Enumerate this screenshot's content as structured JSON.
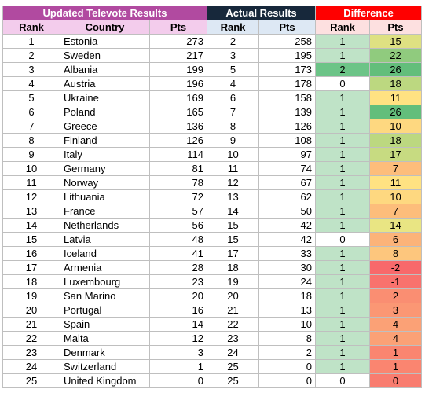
{
  "groups": {
    "televote": "Updated Televote Results",
    "actual": "Actual Results",
    "difference": "Difference"
  },
  "headers": {
    "rank": "Rank",
    "country": "Country",
    "pts": "Pts",
    "actual_rank": "Rank",
    "actual_pts": "Pts",
    "diff_rank": "Rank",
    "diff_pts": "Pts"
  },
  "rows": [
    {
      "rank": 1,
      "country": "Estonia",
      "pts": 273,
      "a_rank": 2,
      "a_pts": 258,
      "d_rank": 1,
      "d_pts": 15
    },
    {
      "rank": 2,
      "country": "Sweden",
      "pts": 217,
      "a_rank": 3,
      "a_pts": 195,
      "d_rank": 1,
      "d_pts": 22
    },
    {
      "rank": 3,
      "country": "Albania",
      "pts": 199,
      "a_rank": 5,
      "a_pts": 173,
      "d_rank": 2,
      "d_pts": 26
    },
    {
      "rank": 4,
      "country": "Austria",
      "pts": 196,
      "a_rank": 4,
      "a_pts": 178,
      "d_rank": 0,
      "d_pts": 18
    },
    {
      "rank": 5,
      "country": "Ukraine",
      "pts": 169,
      "a_rank": 6,
      "a_pts": 158,
      "d_rank": 1,
      "d_pts": 11
    },
    {
      "rank": 6,
      "country": "Poland",
      "pts": 165,
      "a_rank": 7,
      "a_pts": 139,
      "d_rank": 1,
      "d_pts": 26
    },
    {
      "rank": 7,
      "country": "Greece",
      "pts": 136,
      "a_rank": 8,
      "a_pts": 126,
      "d_rank": 1,
      "d_pts": 10
    },
    {
      "rank": 8,
      "country": "Finland",
      "pts": 126,
      "a_rank": 9,
      "a_pts": 108,
      "d_rank": 1,
      "d_pts": 18
    },
    {
      "rank": 9,
      "country": "Italy",
      "pts": 114,
      "a_rank": 10,
      "a_pts": 97,
      "d_rank": 1,
      "d_pts": 17
    },
    {
      "rank": 10,
      "country": "Germany",
      "pts": 81,
      "a_rank": 11,
      "a_pts": 74,
      "d_rank": 1,
      "d_pts": 7
    },
    {
      "rank": 11,
      "country": "Norway",
      "pts": 78,
      "a_rank": 12,
      "a_pts": 67,
      "d_rank": 1,
      "d_pts": 11
    },
    {
      "rank": 12,
      "country": "Lithuania",
      "pts": 72,
      "a_rank": 13,
      "a_pts": 62,
      "d_rank": 1,
      "d_pts": 10
    },
    {
      "rank": 13,
      "country": "France",
      "pts": 57,
      "a_rank": 14,
      "a_pts": 50,
      "d_rank": 1,
      "d_pts": 7
    },
    {
      "rank": 14,
      "country": "Netherlands",
      "pts": 56,
      "a_rank": 15,
      "a_pts": 42,
      "d_rank": 1,
      "d_pts": 14
    },
    {
      "rank": 15,
      "country": "Latvia",
      "pts": 48,
      "a_rank": 15,
      "a_pts": 42,
      "d_rank": 0,
      "d_pts": 6
    },
    {
      "rank": 16,
      "country": "Iceland",
      "pts": 41,
      "a_rank": 17,
      "a_pts": 33,
      "d_rank": 1,
      "d_pts": 8
    },
    {
      "rank": 17,
      "country": "Armenia",
      "pts": 28,
      "a_rank": 18,
      "a_pts": 30,
      "d_rank": 1,
      "d_pts": -2
    },
    {
      "rank": 18,
      "country": "Luxembourg",
      "pts": 23,
      "a_rank": 19,
      "a_pts": 24,
      "d_rank": 1,
      "d_pts": -1
    },
    {
      "rank": 19,
      "country": "San Marino",
      "pts": 20,
      "a_rank": 20,
      "a_pts": 18,
      "d_rank": 1,
      "d_pts": 2
    },
    {
      "rank": 20,
      "country": "Portugal",
      "pts": 16,
      "a_rank": 21,
      "a_pts": 13,
      "d_rank": 1,
      "d_pts": 3
    },
    {
      "rank": 21,
      "country": "Spain",
      "pts": 14,
      "a_rank": 22,
      "a_pts": 10,
      "d_rank": 1,
      "d_pts": 4
    },
    {
      "rank": 22,
      "country": "Malta",
      "pts": 12,
      "a_rank": 23,
      "a_pts": 8,
      "d_rank": 1,
      "d_pts": 4
    },
    {
      "rank": 23,
      "country": "Denmark",
      "pts": 3,
      "a_rank": 24,
      "a_pts": 2,
      "d_rank": 1,
      "d_pts": 1
    },
    {
      "rank": 24,
      "country": "Switzerland",
      "pts": 1,
      "a_rank": 25,
      "a_pts": 0,
      "d_rank": 1,
      "d_pts": 1
    },
    {
      "rank": 25,
      "country": "United Kingdom",
      "pts": 0,
      "a_rank": 25,
      "a_pts": 0,
      "d_rank": 0,
      "d_pts": 0
    }
  ],
  "colors": {
    "televote_header": "#b14aa0",
    "actual_header": "#17283b",
    "difference_header": "#ff0000",
    "rank_diff_0": "#ffffff",
    "rank_diff_1": "#bfe3c7",
    "rank_diff_2": "#6cc487",
    "pts_scale_low": "#f8696b",
    "pts_scale_mid": "#ffeb84",
    "pts_scale_high": "#63be7b"
  }
}
